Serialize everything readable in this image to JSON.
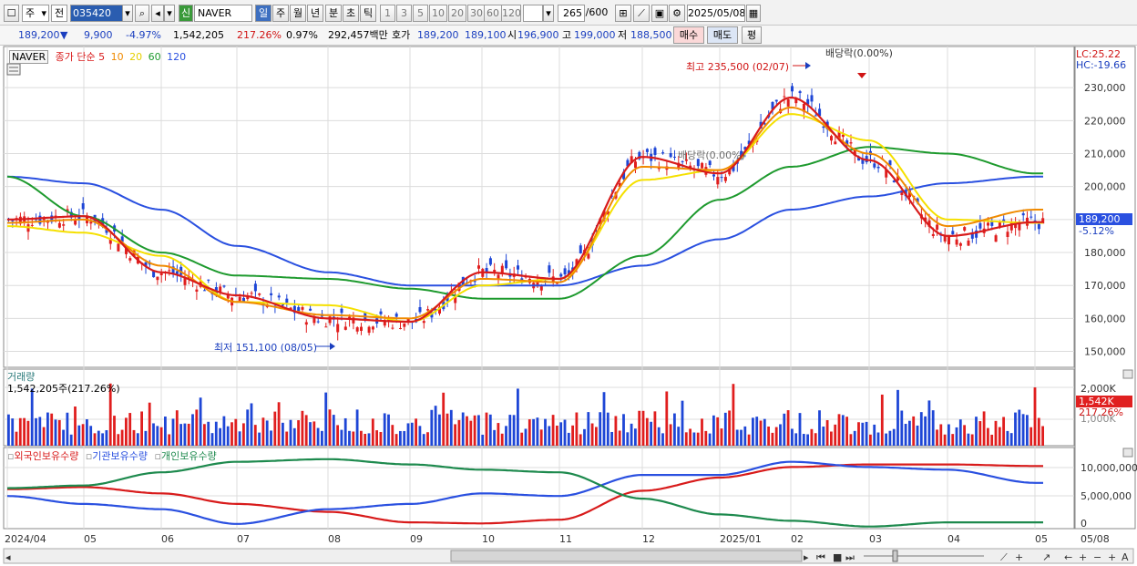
{
  "toolbar": {
    "type": "주",
    "scope": "전",
    "code": "035420",
    "badge": "신",
    "name": "NAVER",
    "periods": [
      "일",
      "주",
      "월",
      "년",
      "분",
      "초",
      "틱"
    ],
    "active_period": "일",
    "minutes": [
      "1",
      "3",
      "5",
      "10",
      "20",
      "30",
      "60",
      "120"
    ],
    "count": "265",
    "total": "/600",
    "date": "2025/05/08"
  },
  "quote": {
    "price": "189,200",
    "arrow": "▼",
    "change": "9,900",
    "change_pct": "-4.97%",
    "volume": "1,542,205",
    "volume_ratio": "217.26%",
    "turnover_pct": "0.97%",
    "amount": "292,457백만",
    "bid_label": "호가",
    "bid": "189,200",
    "ask": "189,100",
    "open_label": "시",
    "open": "196,900",
    "high_label": "고",
    "high": "199,000",
    "low_label": "저",
    "low": "188,500",
    "buy_label": "매수",
    "sell_label": "매도",
    "eval_label": "평"
  },
  "price_panel": {
    "stock": "NAVER",
    "ma_title": "종가 단순",
    "ma_periods": [
      "5",
      "10",
      "20",
      "60",
      "120"
    ],
    "ma_colors": [
      "#d81b1b",
      "#f08a00",
      "#f5e000",
      "#1e9a2e",
      "#2a50e0"
    ],
    "lc": "LC:25.22",
    "hc": "HC:-19.66",
    "high_note": "최고 235,500 (02/07)",
    "low_note": "최저 151,100 (08/05)",
    "div_note": "배당락(0.00%)",
    "div_note2": "배당락(0.00%)",
    "current_price": "189,200",
    "current_pct": "-5.12%"
  },
  "volume_panel": {
    "title": "거래량",
    "value": "1,542,205주(217.26%)",
    "axis": [
      "2,000K"
    ],
    "current": "1,542K",
    "current_pct": "217.26%",
    "hidden_tick": "1,000K"
  },
  "holding_panel": {
    "labels": [
      "외국인보유수량",
      "기관보유수량",
      "개인보유수량"
    ],
    "colors": [
      "#d81b1b",
      "#2a50e0",
      "#1e8a4e"
    ],
    "axis": [
      "10,000,000",
      "5,000,000",
      "0"
    ]
  },
  "x_axis": {
    "labels": [
      "2024/04",
      "05",
      "06",
      "07",
      "08",
      "09",
      "10",
      "11",
      "12",
      "2025/01",
      "02",
      "03",
      "04",
      "05",
      "05/08"
    ]
  },
  "chart_data": {
    "type": "line",
    "title": "NAVER",
    "ylabel": "",
    "ylim": [
      146000,
      240000
    ],
    "y_ticks": [
      230000,
      220000,
      210000,
      200000,
      190000,
      180000,
      170000,
      160000,
      150000
    ],
    "x": [
      "2024/04",
      "05",
      "06",
      "07",
      "08",
      "09",
      "10",
      "11",
      "12",
      "2025/01",
      "02",
      "03",
      "04",
      "05"
    ],
    "series": [
      {
        "name": "5",
        "values": [
          190000,
          191000,
          174000,
          167000,
          160000,
          159000,
          174000,
          172000,
          209000,
          204000,
          227000,
          208000,
          185000,
          189200
        ]
      },
      {
        "name": "10",
        "values": [
          189000,
          190000,
          176000,
          165000,
          161000,
          160000,
          172000,
          171000,
          206000,
          205000,
          224000,
          210000,
          188000,
          193000
        ]
      },
      {
        "name": "20",
        "values": [
          188000,
          186000,
          179000,
          165000,
          164000,
          159000,
          170000,
          172000,
          202000,
          205000,
          222000,
          214000,
          190000,
          189000
        ]
      },
      {
        "name": "60",
        "values": [
          203000,
          191000,
          180000,
          173000,
          172000,
          169000,
          166000,
          166000,
          179000,
          196000,
          206000,
          212000,
          210000,
          204000
        ]
      },
      {
        "name": "120",
        "values": [
          203000,
          201000,
          193000,
          182000,
          174000,
          170000,
          170000,
          170000,
          176000,
          184000,
          193000,
          197000,
          201000,
          203000
        ]
      }
    ],
    "annotations": [
      "최고 235,500 (02/07)",
      "최저 151,100 (08/05)",
      "배당락(0.00%)"
    ]
  }
}
